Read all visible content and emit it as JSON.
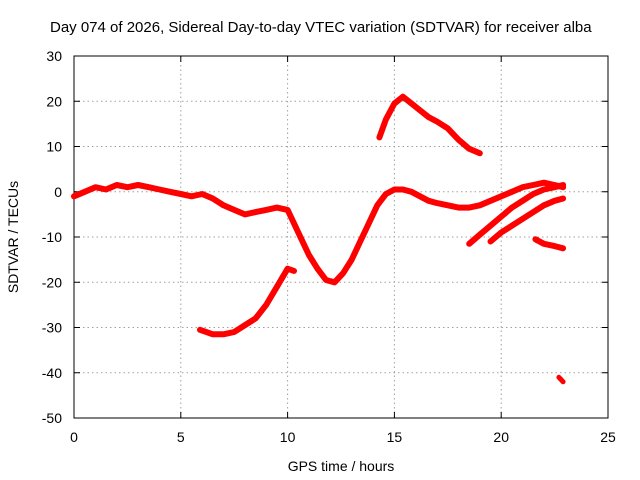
{
  "chart_data": {
    "type": "line",
    "title": "Day 074 of 2026, Sidereal Day-to-day VTEC variation (SDTVAR) for receiver alba",
    "xlabel": "GPS time / hours",
    "ylabel": "SDTVAR / TECUs",
    "xlim": [
      0,
      25
    ],
    "ylim": [
      -50,
      30
    ],
    "xticks": [
      0,
      5,
      10,
      15,
      20,
      25
    ],
    "yticks": [
      -50,
      -40,
      -30,
      -20,
      -10,
      0,
      10,
      20,
      30
    ],
    "grid": true,
    "legend": "none",
    "series_color": "#ff0000",
    "series": [
      {
        "name": "main-track",
        "x": [
          0,
          0.5,
          1,
          1.5,
          2,
          2.5,
          3,
          3.5,
          4,
          4.5,
          5,
          5.5,
          6,
          6.5,
          7,
          7.5,
          8,
          8.5,
          9,
          9.5,
          10,
          10.3,
          10.6,
          11,
          11.4,
          11.8,
          12.2,
          12.6,
          13,
          13.4,
          13.8,
          14.2,
          14.6,
          15,
          15.4,
          15.8,
          16.2,
          16.6,
          17,
          17.5,
          18,
          18.5,
          19,
          19.5,
          20,
          20.5,
          21,
          21.5,
          22,
          22.5,
          22.9
        ],
        "values": [
          -1,
          0,
          1,
          0.5,
          1.5,
          1,
          1.5,
          1,
          0.5,
          0,
          -0.5,
          -1,
          -0.5,
          -1.5,
          -3,
          -4,
          -5,
          -4.5,
          -4,
          -3.5,
          -4,
          -7,
          -10,
          -14,
          -17,
          -19.5,
          -20,
          -18,
          -15,
          -11,
          -7,
          -3,
          -0.5,
          0.5,
          0.5,
          0,
          -1,
          -2,
          -2.5,
          -3,
          -3.5,
          -3.5,
          -3,
          -2,
          -1,
          0,
          1,
          1.5,
          2,
          1.5,
          1
        ]
      },
      {
        "name": "upper-arc",
        "x": [
          14.3,
          14.6,
          15,
          15.4,
          15.8,
          16.2,
          16.6,
          17,
          17.5,
          18,
          18.5,
          19
        ],
        "values": [
          12,
          16,
          19.5,
          21,
          19.5,
          18,
          16.5,
          15.5,
          14,
          11.5,
          9.5,
          8.5
        ]
      },
      {
        "name": "lower-rise",
        "x": [
          5.9,
          6.5,
          7,
          7.5,
          8,
          8.5,
          9,
          9.5,
          10,
          10.3
        ],
        "values": [
          -30.5,
          -31.5,
          -31.5,
          -31,
          -29.5,
          -28,
          -25,
          -21,
          -17,
          -17.5
        ]
      },
      {
        "name": "late-band-1",
        "x": [
          18.5,
          19,
          19.5,
          20,
          20.5,
          21,
          21.5,
          22,
          22.5,
          22.9
        ],
        "values": [
          -11.5,
          -9.5,
          -7.5,
          -5.5,
          -3.5,
          -2,
          -0.5,
          0.5,
          1,
          1.5
        ]
      },
      {
        "name": "late-band-2",
        "x": [
          19.5,
          20,
          20.5,
          21,
          21.5,
          22,
          22.5,
          22.9
        ],
        "values": [
          -11,
          -9,
          -7.5,
          -6,
          -4.5,
          -3,
          -2,
          -1.5
        ]
      },
      {
        "name": "late-segment",
        "x": [
          21.6,
          22,
          22.5,
          22.9
        ],
        "values": [
          -10.5,
          -11.5,
          -12,
          -12.5
        ]
      },
      {
        "name": "late-point",
        "x": [
          22.7,
          22.8,
          22.9
        ],
        "values": [
          -41,
          -41.5,
          -42
        ]
      }
    ]
  }
}
